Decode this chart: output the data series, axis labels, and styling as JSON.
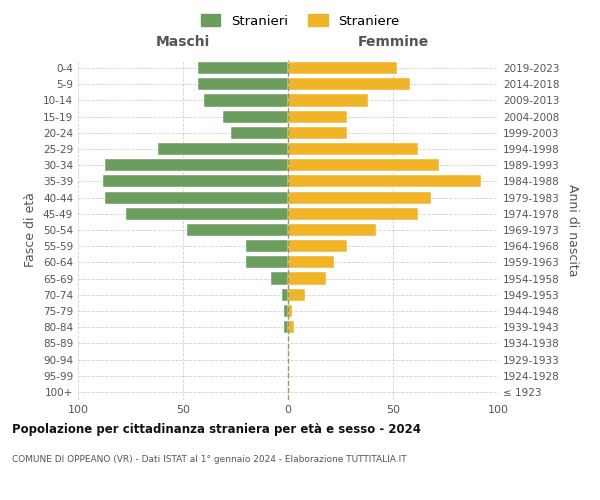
{
  "age_groups": [
    "100+",
    "95-99",
    "90-94",
    "85-89",
    "80-84",
    "75-79",
    "70-74",
    "65-69",
    "60-64",
    "55-59",
    "50-54",
    "45-49",
    "40-44",
    "35-39",
    "30-34",
    "25-29",
    "20-24",
    "15-19",
    "10-14",
    "5-9",
    "0-4"
  ],
  "birth_years": [
    "≤ 1923",
    "1924-1928",
    "1929-1933",
    "1934-1938",
    "1939-1943",
    "1944-1948",
    "1949-1953",
    "1954-1958",
    "1959-1963",
    "1964-1968",
    "1969-1973",
    "1974-1978",
    "1979-1983",
    "1984-1988",
    "1989-1993",
    "1994-1998",
    "1999-2003",
    "2004-2008",
    "2009-2013",
    "2014-2018",
    "2019-2023"
  ],
  "males": [
    0,
    0,
    0,
    0,
    2,
    2,
    3,
    8,
    20,
    20,
    48,
    77,
    87,
    88,
    87,
    62,
    27,
    31,
    40,
    43,
    43
  ],
  "females": [
    0,
    0,
    0,
    0,
    3,
    2,
    8,
    18,
    22,
    28,
    42,
    62,
    68,
    92,
    72,
    62,
    28,
    28,
    38,
    58,
    52
  ],
  "male_color": "#6b9e5e",
  "female_color": "#f0b429",
  "background_color": "#ffffff",
  "grid_color": "#cccccc",
  "title": "Popolazione per cittadinanza straniera per età e sesso - 2024",
  "subtitle": "COMUNE DI OPPEANO (VR) - Dati ISTAT al 1° gennaio 2024 - Elaborazione TUTTITALIA.IT",
  "left_label": "Maschi",
  "right_label": "Femmine",
  "ylabel_left": "Fasce di età",
  "ylabel_right": "Anni di nascita",
  "xlim": 100,
  "legend_males": "Stranieri",
  "legend_females": "Straniere"
}
